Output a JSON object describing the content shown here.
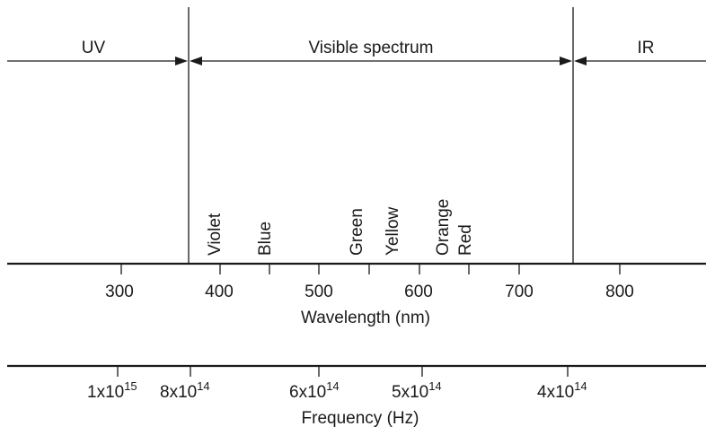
{
  "regions": {
    "uv": "UV",
    "visible": "Visible spectrum",
    "ir": "IR"
  },
  "colors": [
    "Violet",
    "Blue",
    "Green",
    "Yellow",
    "Orange",
    "Red"
  ],
  "wavelength_axis": {
    "title": "Wavelength (nm)",
    "tick_labels": [
      "300",
      "400",
      "500",
      "600",
      "700",
      "800"
    ]
  },
  "frequency_axis": {
    "title": "Frequency (Hz)",
    "tick_labels": [
      {
        "mantissa": "1x10",
        "exponent": "15"
      },
      {
        "mantissa": "8x10",
        "exponent": "14"
      },
      {
        "mantissa": "6x10",
        "exponent": "14"
      },
      {
        "mantissa": "5x10",
        "exponent": "14"
      },
      {
        "mantissa": "4x10",
        "exponent": "14"
      }
    ]
  }
}
